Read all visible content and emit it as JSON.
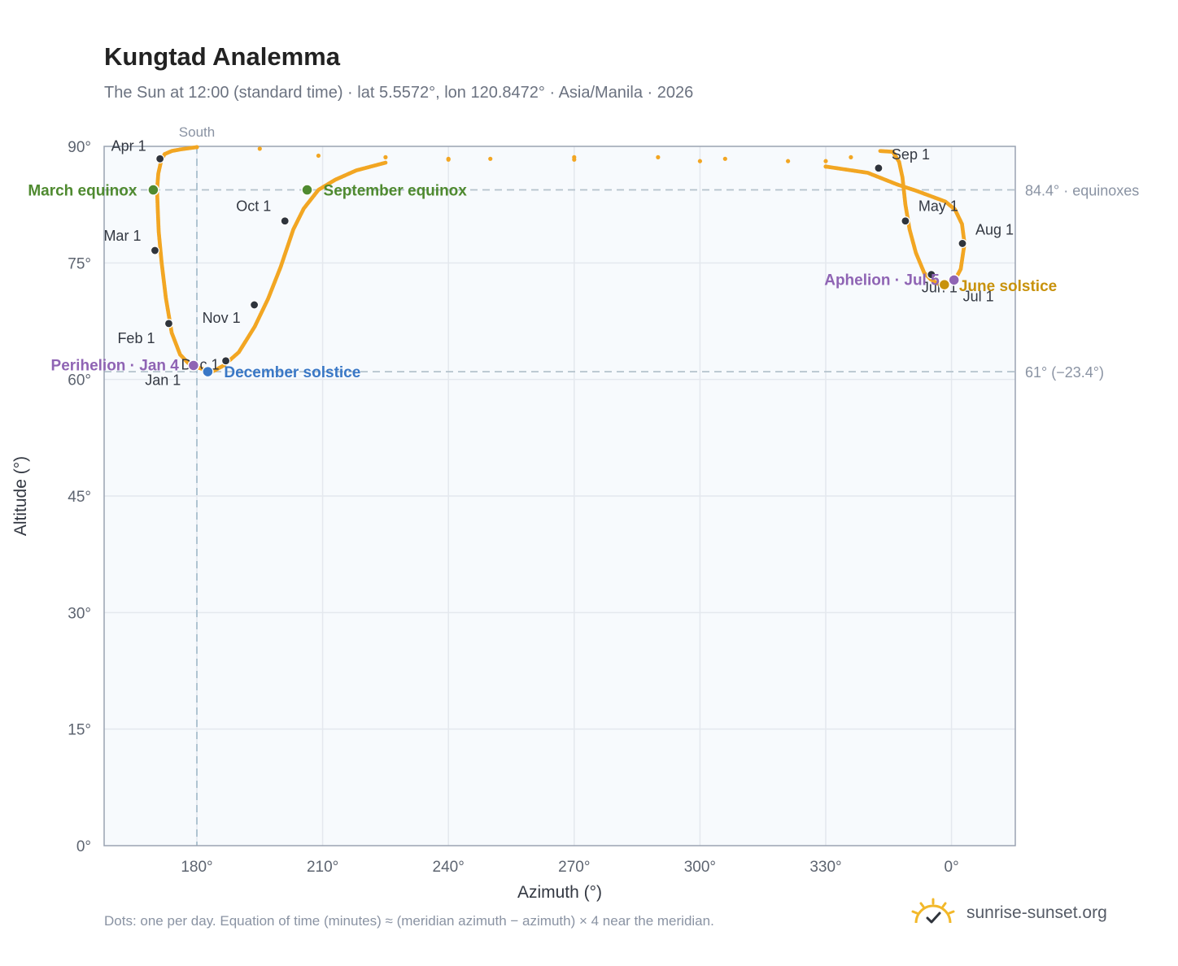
{
  "header": {
    "title": "Kungtad Analemma",
    "subtitle": "The Sun at 12:00 (standard time) · lat 5.5572°, lon 120.8472° · Asia/Manila · 2026"
  },
  "footer": {
    "note": "Dots: one per day. Equation of time (minutes) ≈ (meridian azimuth − azimuth) × 4 near the meridian.",
    "brand": "sunrise-sunset.org",
    "brand_icon": "sun-icon"
  },
  "colors": {
    "path": "#f2a623",
    "month_marker": "#2f343c",
    "equinox": "#4f8a30",
    "december_solstice": "#3a78c6",
    "june_solstice": "#c8920c",
    "perihelion_aphelion": "#8f64b4",
    "grid": "#e4e8ee",
    "plot_bg": "#f7fafd",
    "reference_line": "#b4c2cc"
  },
  "chart_data": {
    "type": "scatter",
    "title": "Kungtad Analemma",
    "xlabel": "Azimuth (°)",
    "ylabel": "Altitude (°)",
    "x_ticks": [
      "180°",
      "210°",
      "240°",
      "270°",
      "300°",
      "330°",
      "0°"
    ],
    "y_ticks": [
      "0°",
      "15°",
      "30°",
      "45°",
      "60°",
      "75°",
      "90°"
    ],
    "ylim": [
      0,
      90
    ],
    "xlim": [
      158,
      375
    ],
    "x_note": "Azimuth axis wraps: values above 360 are plotted as azimuth − 360 (tick 0°).",
    "grid": true,
    "reference_lines": [
      {
        "kind": "horizontal",
        "value": 84.4,
        "label": "84.4° · equinoxes"
      },
      {
        "kind": "horizontal",
        "value": 61,
        "label": "61° (−23.4°)"
      },
      {
        "kind": "vertical",
        "value": 180,
        "label": "South"
      }
    ],
    "analemma_path": [
      [
        181.7,
        61.3
      ],
      [
        178.5,
        61.8
      ],
      [
        176.0,
        63.2
      ],
      [
        174.0,
        66.0
      ],
      [
        172.6,
        70.5
      ],
      [
        171.6,
        75.0
      ],
      [
        170.9,
        79.0
      ],
      [
        170.7,
        81.5
      ],
      [
        170.5,
        84.4
      ],
      [
        170.8,
        86.5
      ],
      [
        171.5,
        88.2
      ],
      [
        172.3,
        89.0
      ],
      [
        174.0,
        89.4
      ],
      [
        176.0,
        89.6
      ],
      [
        180.0,
        89.9
      ],
      [
        195.0,
        89.7
      ],
      [
        209.0,
        88.8
      ],
      [
        225.0,
        88.6
      ],
      [
        240.0,
        88.4
      ],
      [
        250.0,
        88.4
      ],
      [
        270.0,
        88.6
      ],
      [
        290.0,
        88.6
      ],
      [
        306.0,
        88.4
      ],
      [
        321.0,
        88.1
      ],
      [
        330.0,
        88.1
      ],
      [
        336.0,
        88.6
      ],
      [
        343.0,
        89.4
      ],
      [
        346.0,
        89.3
      ],
      [
        347.5,
        88.0
      ],
      [
        348.3,
        86.0
      ],
      [
        349.0,
        82.5
      ],
      [
        350.0,
        79.3
      ],
      [
        351.5,
        76.3
      ],
      [
        353.5,
        73.7
      ],
      [
        355.0,
        72.9
      ],
      [
        356.8,
        72.3
      ],
      [
        358.6,
        72.5
      ],
      [
        360.9,
        72.9
      ],
      [
        362.2,
        74.2
      ],
      [
        363.1,
        77.5
      ],
      [
        362.5,
        80.0
      ],
      [
        360.8,
        81.9
      ],
      [
        358.5,
        82.9
      ],
      [
        355.0,
        83.6
      ],
      [
        351.5,
        84.3
      ],
      [
        347.0,
        85.1
      ],
      [
        340.0,
        86.6
      ],
      [
        330.0,
        87.4
      ],
      [
        300.0,
        88.1
      ],
      [
        270.0,
        88.3
      ],
      [
        240.0,
        88.3
      ],
      [
        225.0,
        87.9
      ],
      [
        218.0,
        86.9
      ],
      [
        213.0,
        85.7
      ],
      [
        209.0,
        84.4
      ],
      [
        205.5,
        82.0
      ],
      [
        203.0,
        79.3
      ],
      [
        200.0,
        74.5
      ],
      [
        197.0,
        70.4
      ],
      [
        193.8,
        66.8
      ],
      [
        190.0,
        63.5
      ],
      [
        186.4,
        61.8
      ],
      [
        183.7,
        61.0
      ],
      [
        181.7,
        61.3
      ]
    ],
    "month_markers": [
      {
        "label": "Jan 1",
        "az": 178.9,
        "alt": 61.8
      },
      {
        "label": "Feb 1",
        "az": 173.3,
        "alt": 67.2
      },
      {
        "label": "Mar 1",
        "az": 170.0,
        "alt": 76.6
      },
      {
        "label": "Apr 1",
        "az": 171.2,
        "alt": 88.4
      },
      {
        "label": "May 1",
        "az": 349.0,
        "alt": 80.4
      },
      {
        "label": "Jun 1",
        "az": 355.2,
        "alt": 73.5
      },
      {
        "label": "Jul 1",
        "az": 360.4,
        "alt": 72.8
      },
      {
        "label": "Aug 1",
        "az": 362.6,
        "alt": 77.5
      },
      {
        "label": "Sep 1",
        "az": 342.6,
        "alt": 87.2
      },
      {
        "label": "Oct 1",
        "az": 201.0,
        "alt": 80.4
      },
      {
        "label": "Nov 1",
        "az": 193.7,
        "alt": 69.6
      },
      {
        "label": "Dec 1",
        "az": 186.9,
        "alt": 62.4
      }
    ],
    "events": [
      {
        "label": "March equinox",
        "az": 169.6,
        "alt": 84.4,
        "color_key": "equinox"
      },
      {
        "label": "September equinox",
        "az": 206.3,
        "alt": 84.4,
        "color_key": "equinox"
      },
      {
        "label": "December solstice",
        "az": 182.6,
        "alt": 61.0,
        "color_key": "december_solstice"
      },
      {
        "label": "June solstice",
        "az": 358.3,
        "alt": 72.2,
        "color_key": "june_solstice"
      },
      {
        "label": "Perihelion · Jan 4",
        "az": 179.2,
        "alt": 61.8,
        "color_key": "perihelion_aphelion"
      },
      {
        "label": "Aphelion · Jul 5",
        "az": 360.6,
        "alt": 72.8,
        "color_key": "perihelion_aphelion"
      }
    ]
  }
}
